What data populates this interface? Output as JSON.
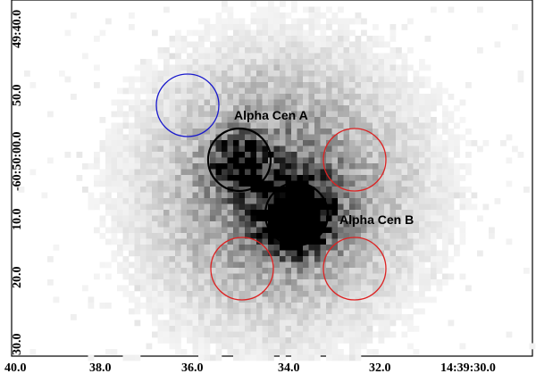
{
  "image": {
    "description_free": true,
    "x_axis": {
      "ticks": [
        "40.0",
        "38.0",
        "36.0",
        "34.0",
        "32.0",
        "14:39:30.0"
      ]
    },
    "y_axis": {
      "ticks": [
        "49:40.0",
        "50.0",
        "-60:50:00.0",
        "10.0",
        "20.0",
        "30.0"
      ]
    },
    "sources": [
      {
        "name": "Alpha Cen A"
      },
      {
        "name": "Alpha Cen B"
      }
    ],
    "regions": {
      "source_color": "#000000",
      "background_color": "#ff0000",
      "reference_color": "#0000ff"
    },
    "colormap": "grayscale"
  }
}
